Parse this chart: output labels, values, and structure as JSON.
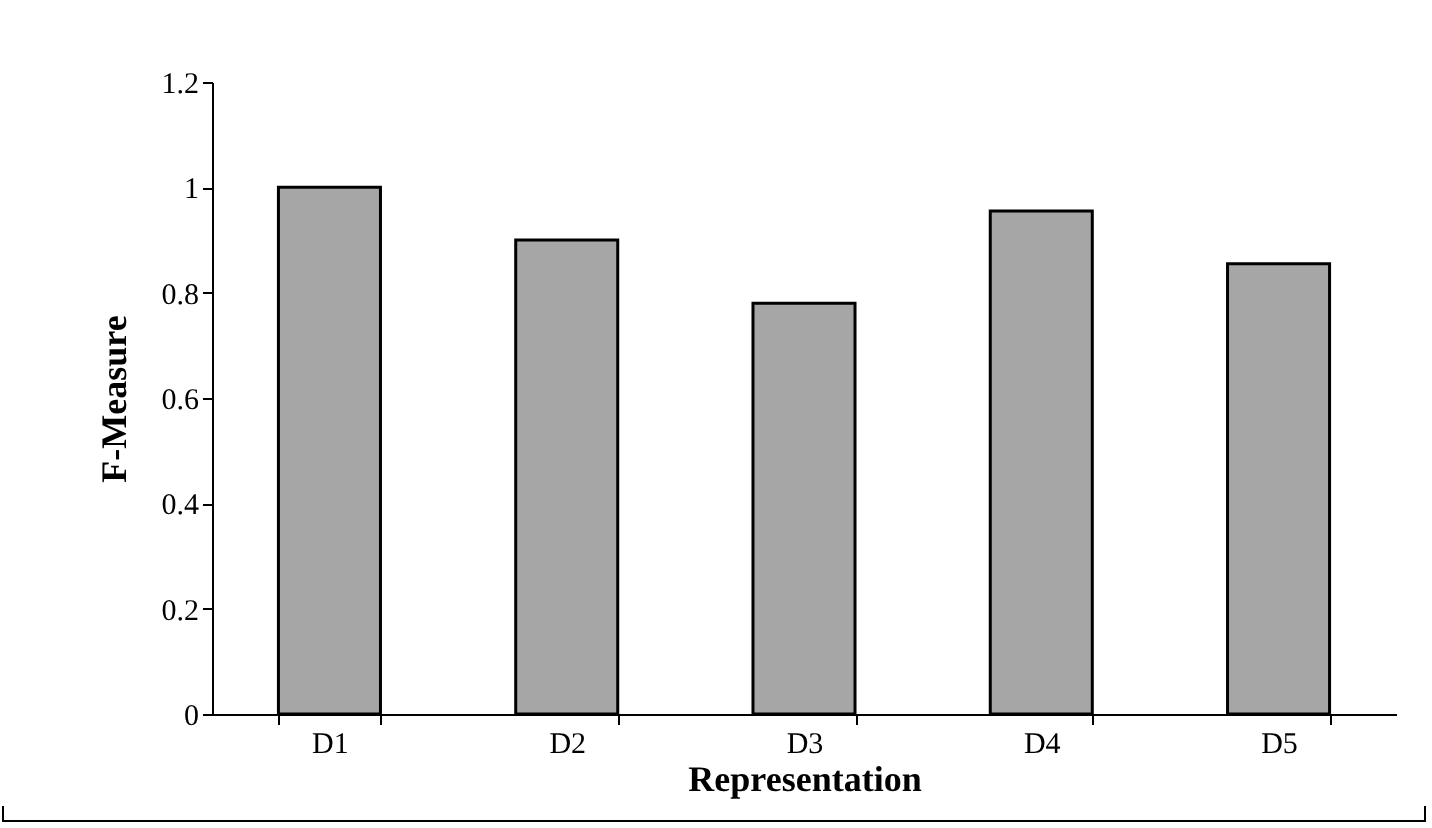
{
  "chart_data": {
    "type": "bar",
    "xlabel": "Representation",
    "ylabel": "F-Measure",
    "categories": [
      "D1",
      "D2",
      "D3",
      "D4",
      "D5"
    ],
    "values": [
      1.0,
      0.9,
      0.78,
      0.955,
      0.855
    ],
    "color": "#a6a6a6",
    "ylim": [
      0,
      1.2
    ],
    "yticks": [
      0,
      0.2,
      0.4,
      0.6,
      0.8,
      1,
      1.2
    ],
    "grid": false,
    "legend": false
  }
}
